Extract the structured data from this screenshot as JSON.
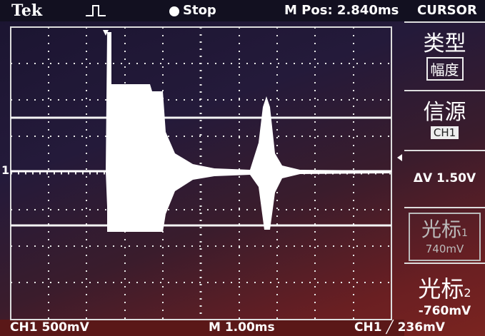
{
  "header": {
    "brand": "Tek",
    "status": "Stop",
    "position": "M Pos: 2.840ms"
  },
  "menu": {
    "title": "CURSOR",
    "items": [
      {
        "label": "类型",
        "value": "幅度"
      },
      {
        "label": "信源",
        "value": "CH1"
      },
      {
        "label": "ΔV 1.50V"
      },
      {
        "label": "光标",
        "index": "1",
        "value": "740mV"
      },
      {
        "label": "光标",
        "index": "2",
        "value": "-760mV"
      }
    ]
  },
  "footer": {
    "channel": "CH1 500mV",
    "timebase": "M 1.00ms",
    "trigger": "CH1 ╱ 236mV"
  },
  "markers": {
    "channel": "1"
  }
}
